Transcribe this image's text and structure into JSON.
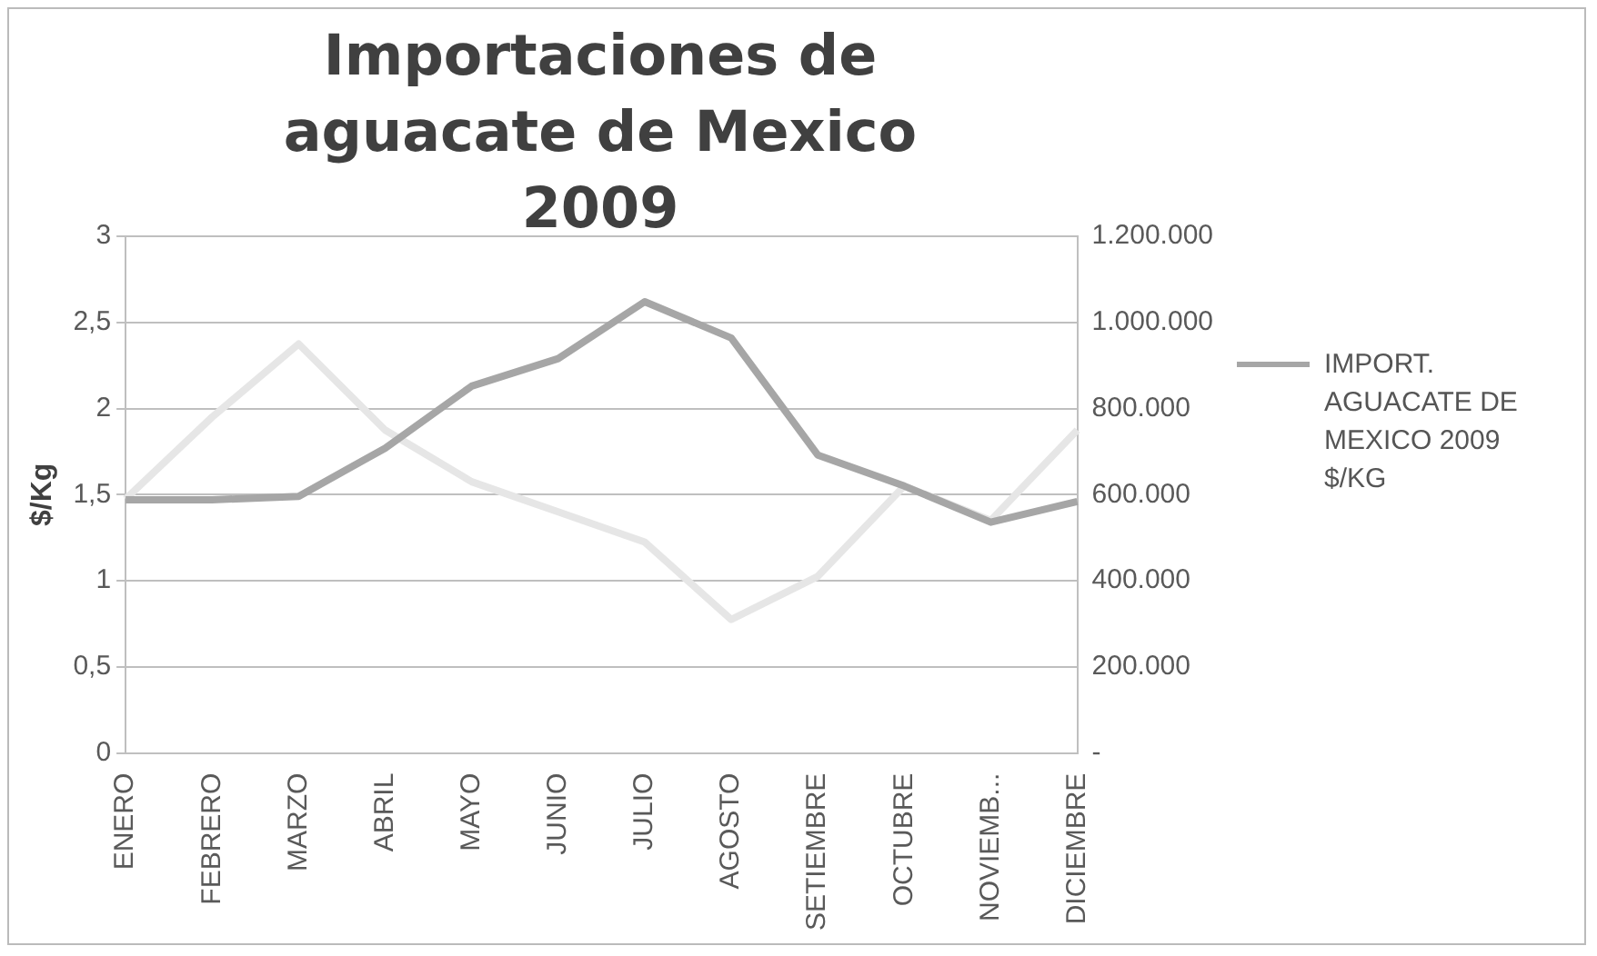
{
  "chart_data": {
    "type": "line",
    "title": "Importaciones de aguacate de Mexico 2009",
    "ylabel": "$/Kg",
    "categories": [
      "ENERO",
      "FEBRERO",
      "MARZO",
      "ABRIL",
      "MAYO",
      "JUNIO",
      "JULIO",
      "AGOSTO",
      "SETIEMBRE",
      "OCTUBRE",
      "NOVIEMB...",
      "DICIEMBRE"
    ],
    "series": [
      {
        "name": "IMPORT. AGUACATE DE MEXICO 2009 $/KG",
        "color": "#a6a6a6",
        "values": [
          1.47,
          1.47,
          1.49,
          1.77,
          2.13,
          2.29,
          2.62,
          2.41,
          1.73,
          1.55,
          1.34,
          1.46
        ]
      },
      {
        "color": "#e6e6e6",
        "axis": "y2",
        "values": [
          590000,
          780000,
          950000,
          750000,
          630000,
          560000,
          490000,
          310000,
          410000,
          620000,
          540000,
          750000
        ]
      }
    ],
    "ylim": [
      0,
      3
    ],
    "yticks": [
      0,
      {
        "value": 0.5,
        "label": "0,5"
      },
      1,
      {
        "value": 1.5,
        "label": "1,5"
      },
      2,
      {
        "value": 2.5,
        "label": "2,5"
      },
      3
    ],
    "y2lim": [
      0,
      1200000
    ],
    "y2ticks": [
      {
        "value": 0,
        "label": "-"
      },
      {
        "value": 200000,
        "label": "200.000"
      },
      {
        "value": 400000,
        "label": "400.000"
      },
      {
        "value": 600000,
        "label": "600.000"
      },
      {
        "value": 800000,
        "label": "800.000"
      },
      {
        "value": 1000000,
        "label": "1.000.000"
      },
      {
        "value": 1200000,
        "label": "1.200.000"
      }
    ],
    "grid": "y",
    "legend": "right",
    "marker": "none",
    "line_style": "solid"
  }
}
